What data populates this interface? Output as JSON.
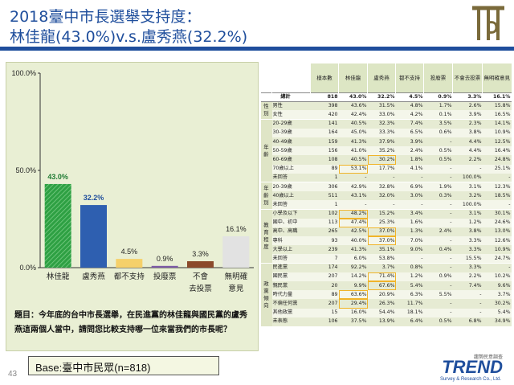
{
  "header": {
    "title_line1": "2018臺中市長選舉支持度：",
    "title_line2": "林佳龍(43.0%)v.s.盧秀燕(32.2%)"
  },
  "question": "題目：今年底的台中市長選舉，在民進黨的林佳龍與國民黨的盧秀燕這兩個人當中，請問您比較支持哪一位來當我們的市長呢？",
  "base": "Base:臺中市民眾(n=818)",
  "page_number": "43",
  "brand": {
    "name": "TREND",
    "sub": "Survey & Research Co., Ltd.",
    "cn": "趨勢民意調查"
  },
  "colors": {
    "title": "#1f4e9c",
    "lin": "#2ea043",
    "lu": "#2e5fb0",
    "none": "#f5d06a",
    "invalid": "#7d5ba6",
    "not_vote": "#8b4a2b",
    "no_opinion": "#e2e2e2",
    "highlight": "#f0b429"
  },
  "chart_data": {
    "type": "bar",
    "categories": [
      "林佳龍",
      "盧秀燕",
      "都不支持",
      "投廢票",
      "不會\n去投票",
      "無明確\n意見"
    ],
    "category_lines": [
      [
        "林佳龍"
      ],
      [
        "盧秀燕"
      ],
      [
        "都不支持"
      ],
      [
        "投廢票"
      ],
      [
        "不會",
        "去投票"
      ],
      [
        "無明確",
        "意見"
      ]
    ],
    "values": [
      43.0,
      32.2,
      4.5,
      0.9,
      3.3,
      16.1
    ],
    "value_labels": [
      "43.0%",
      "32.2%",
      "4.5%",
      "0.9%",
      "3.3%",
      "16.1%"
    ],
    "ylim": [
      0,
      100
    ],
    "yticks": [
      "0.0%",
      "50.0%",
      "100.0%"
    ],
    "grid": false
  },
  "table": {
    "headers": [
      "樣本數",
      "林佳龍",
      "盧秀燕",
      "都不支持",
      "投廢票",
      "不會去投票",
      "無明確意見"
    ],
    "total": {
      "label": "總計",
      "values": [
        "818",
        "43.0%",
        "32.2%",
        "4.5%",
        "0.9%",
        "3.3%",
        "16.1%"
      ]
    },
    "groups": [
      {
        "name": "性別",
        "rows": [
          {
            "label": "男性",
            "values": [
              "398",
              "43.6%",
              "31.5%",
              "4.8%",
              "1.7%",
              "2.6%",
              "15.8%"
            ]
          },
          {
            "label": "女性",
            "values": [
              "420",
              "42.4%",
              "33.0%",
              "4.2%",
              "0.1%",
              "3.9%",
              "16.5%"
            ]
          }
        ]
      },
      {
        "name": "年齡",
        "rows": [
          {
            "label": "20-29歲",
            "values": [
              "141",
              "40.5%",
              "32.3%",
              "7.4%",
              "3.5%",
              "2.3%",
              "14.1%"
            ]
          },
          {
            "label": "30-39歲",
            "values": [
              "164",
              "45.0%",
              "33.3%",
              "6.5%",
              "0.6%",
              "3.8%",
              "10.9%"
            ]
          },
          {
            "label": "40-49歲",
            "values": [
              "159",
              "41.3%",
              "37.9%",
              "3.9%",
              "-",
              "4.4%",
              "12.5%"
            ]
          },
          {
            "label": "50-59歲",
            "values": [
              "156",
              "41.0%",
              "35.2%",
              "2.4%",
              "0.5%",
              "4.4%",
              "16.4%"
            ]
          },
          {
            "label": "60-69歲",
            "values": [
              "108",
              "40.5%",
              "30.2%",
              "1.8%",
              "0.5%",
              "2.2%",
              "24.8%"
            ]
          },
          {
            "label": "70歲以上",
            "values": [
              "89",
              "53.1%",
              "17.7%",
              "4.1%",
              "-",
              "-",
              "25.1%"
            ]
          },
          {
            "label": "未回答",
            "values": [
              "1",
              "-",
              "-",
              "-",
              "-",
              "100.0%",
              "-"
            ]
          }
        ]
      },
      {
        "name": "年齡別",
        "rows": [
          {
            "label": "20-39歲",
            "values": [
              "306",
              "42.9%",
              "32.8%",
              "6.9%",
              "1.9%",
              "3.1%",
              "12.3%"
            ]
          },
          {
            "label": "40歲以上",
            "values": [
              "511",
              "43.1%",
              "32.0%",
              "3.0%",
              "0.3%",
              "3.2%",
              "18.5%"
            ]
          },
          {
            "label": "未回答",
            "values": [
              "1",
              "-",
              "-",
              "-",
              "-",
              "100.0%",
              "-"
            ]
          }
        ]
      },
      {
        "name": "教育程度",
        "rows": [
          {
            "label": "小學及以下",
            "values": [
              "102",
              "48.2%",
              "15.2%",
              "3.4%",
              "-",
              "3.1%",
              "30.1%"
            ]
          },
          {
            "label": "國中、初中",
            "values": [
              "113",
              "47.4%",
              "25.3%",
              "1.6%",
              "-",
              "1.2%",
              "24.6%"
            ]
          },
          {
            "label": "高中、高職",
            "values": [
              "265",
              "42.5%",
              "37.0%",
              "1.3%",
              "2.4%",
              "3.8%",
              "13.0%"
            ]
          },
          {
            "label": "專科",
            "values": [
              "93",
              "40.0%",
              "37.0%",
              "7.0%",
              "-",
              "3.3%",
              "12.6%"
            ]
          },
          {
            "label": "大學以上",
            "values": [
              "239",
              "41.3%",
              "35.1%",
              "9.0%",
              "0.4%",
              "3.3%",
              "10.9%"
            ]
          },
          {
            "label": "未回答",
            "values": [
              "7",
              "6.0%",
              "53.8%",
              "-",
              "-",
              "15.5%",
              "24.7%"
            ]
          }
        ]
      },
      {
        "name": "政黨傾向",
        "rows": [
          {
            "label": "民進黨",
            "values": [
              "174",
              "92.2%",
              "3.7%",
              "0.8%",
              "-",
              "3.3%",
              "-"
            ]
          },
          {
            "label": "國民黨",
            "values": [
              "207",
              "14.2%",
              "71.4%",
              "1.2%",
              "0.9%",
              "2.2%",
              "10.2%"
            ]
          },
          {
            "label": "親民黨",
            "values": [
              "20",
              "9.9%",
              "67.6%",
              "5.4%",
              "-",
              "7.4%",
              "9.6%"
            ]
          },
          {
            "label": "時代力量",
            "values": [
              "89",
              "63.6%",
              "20.9%",
              "6.3%",
              "5.5%",
              "-",
              "3.7%"
            ]
          },
          {
            "label": "不偏任何黨",
            "values": [
              "207",
              "29.4%",
              "26.3%",
              "11.7%",
              "-",
              "-",
              "30.2%"
            ]
          },
          {
            "label": "其他政黨",
            "values": [
              "15",
              "16.0%",
              "54.4%",
              "18.1%",
              "-",
              "-",
              "5.4%"
            ]
          },
          {
            "label": "未表態",
            "values": [
              "106",
              "37.5%",
              "13.9%",
              "6.4%",
              "0.5%",
              "6.8%",
              "34.9%"
            ]
          }
        ]
      }
    ],
    "highlighted": [
      [
        1,
        4,
        2
      ],
      [
        1,
        5,
        1
      ],
      [
        3,
        0,
        1
      ],
      [
        3,
        1,
        1
      ],
      [
        3,
        2,
        2
      ],
      [
        3,
        3,
        2
      ],
      [
        4,
        1,
        2
      ],
      [
        4,
        2,
        2
      ],
      [
        4,
        3,
        1
      ],
      [
        4,
        4,
        1
      ]
    ]
  }
}
